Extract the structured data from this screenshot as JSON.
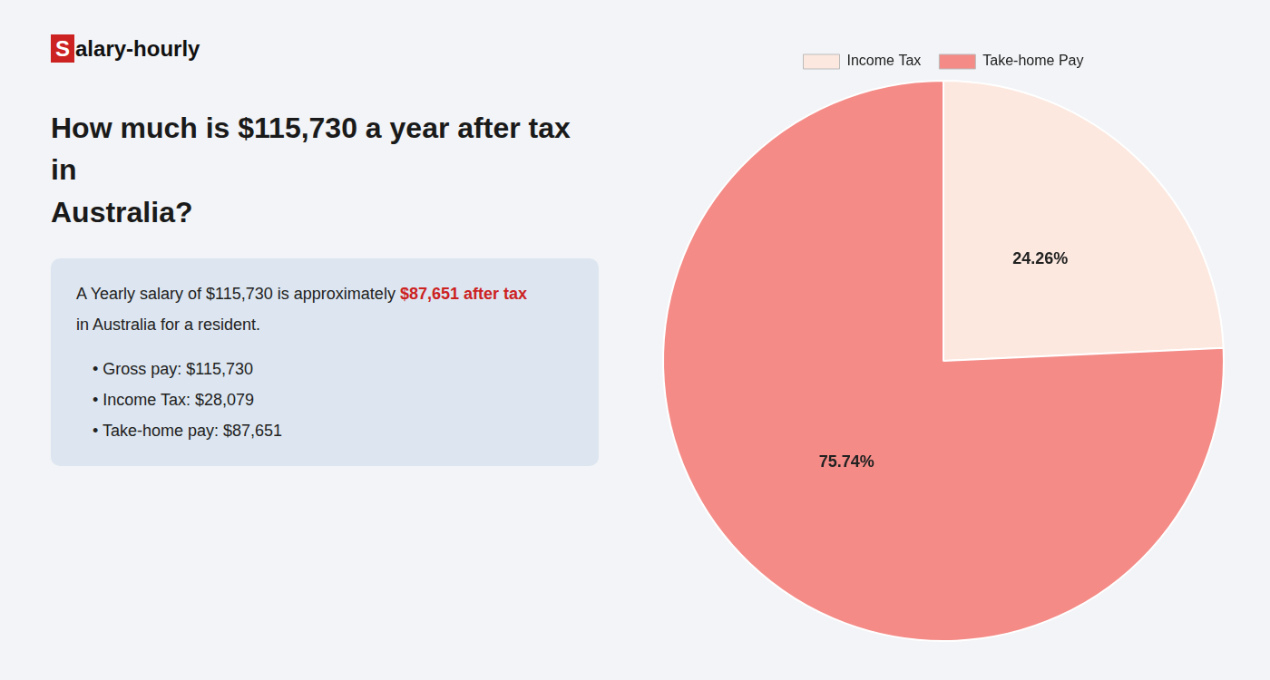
{
  "chart_data": {
    "type": "pie",
    "title": [
      "How much is $115,730 a year after tax in",
      "Australia?"
    ],
    "categories": [
      "Income Tax",
      "Take-home Pay"
    ],
    "values": [
      24.26,
      75.74
    ],
    "value_labels": [
      "24.26%",
      "75.74%"
    ],
    "colors": [
      "#fce8df",
      "#f48b87"
    ],
    "data_labels": true,
    "legend": "top",
    "annotations": [
      [
        {
          "text": "S",
          "color": "#cc2222"
        },
        {
          "text": "alary-hourly"
        }
      ],
      [
        {
          "text": "A Yearly salary of $115,730 is approximately "
        },
        {
          "text": "$87,651 after tax",
          "color": "#cc2222"
        }
      ],
      [
        {
          "text": "in Australia for a resident."
        }
      ],
      [
        {
          "text": "• Gross pay: $115,730"
        }
      ],
      [
        {
          "text": "• Income Tax: $28,079"
        }
      ],
      [
        {
          "text": "• Take-home pay: $87,651"
        }
      ]
    ]
  }
}
